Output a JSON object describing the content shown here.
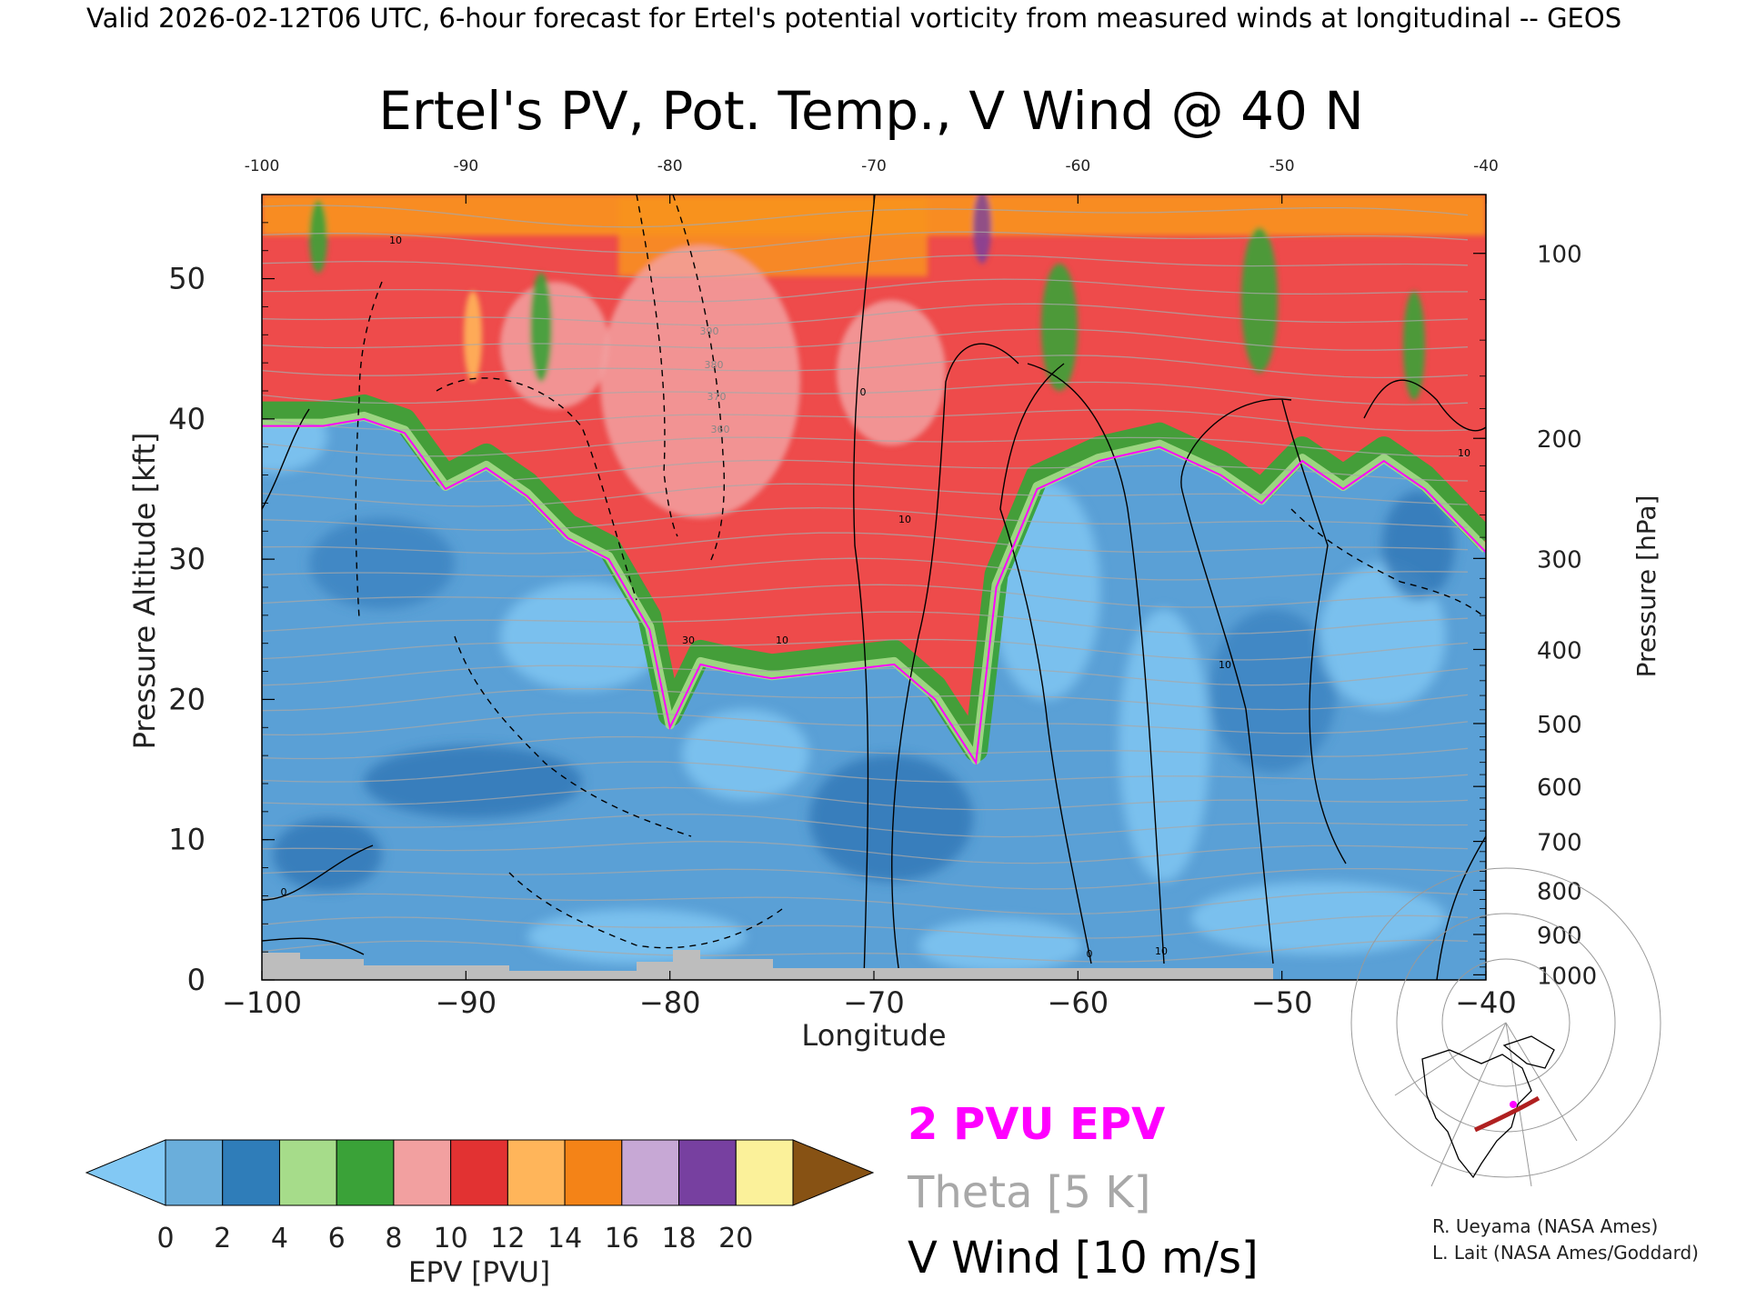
{
  "header": {
    "valid_line": "Valid 2026-02-12T06 UTC, 6-hour forecast for Ertel's potential vorticity from measured winds at longitudinal -- GEOS"
  },
  "chart_data": {
    "type": "heatmap",
    "title": "Ertel's PV, Pot. Temp., V Wind @ 40 N",
    "xlabel": "Longitude",
    "ylabel_left": "Pressure Altitude [kft]",
    "ylabel_right": "Pressure [hPa]",
    "xlim": [
      -100,
      -40
    ],
    "ylim_kft": [
      0,
      56
    ],
    "x_ticks": [
      -100,
      -90,
      -80,
      -70,
      -60,
      -50,
      -40
    ],
    "x_tick_labels_bottom": [
      "−100",
      "−90",
      "−80",
      "−70",
      "−60",
      "−50",
      "−40"
    ],
    "x_tick_labels_top": [
      "-100",
      "-90",
      "-80",
      "-70",
      "-60",
      "-50",
      "-40"
    ],
    "y_ticks_kft": [
      0,
      10,
      20,
      30,
      40,
      50
    ],
    "y_tick_labels_kft": [
      "0",
      "10",
      "20",
      "30",
      "40",
      "50"
    ],
    "pressure_ticks_hpa": [
      1000,
      900,
      800,
      700,
      600,
      500,
      400,
      300,
      200,
      100
    ],
    "pressure_tick_labels": [
      "1000",
      "900",
      "800",
      "700",
      "600",
      "500",
      "400",
      "300",
      "200",
      "100"
    ],
    "tropopause_2pvu_kft": [
      [
        -100,
        39.5
      ],
      [
        -97,
        39.5
      ],
      [
        -95,
        40
      ],
      [
        -93,
        39
      ],
      [
        -91,
        35
      ],
      [
        -89,
        36.5
      ],
      [
        -87,
        34.5
      ],
      [
        -85,
        31.5
      ],
      [
        -83,
        30
      ],
      [
        -81,
        25
      ],
      [
        -80,
        18
      ],
      [
        -78.5,
        22.5
      ],
      [
        -77,
        22
      ],
      [
        -75,
        21.5
      ],
      [
        -72,
        22
      ],
      [
        -69,
        22.5
      ],
      [
        -67,
        20
      ],
      [
        -65,
        15.5
      ],
      [
        -64,
        28
      ],
      [
        -62,
        35
      ],
      [
        -59,
        37
      ],
      [
        -56,
        38
      ],
      [
        -53,
        36
      ],
      [
        -51,
        34
      ],
      [
        -49,
        37
      ],
      [
        -47,
        35
      ],
      [
        -45,
        37
      ],
      [
        -43,
        35
      ],
      [
        -41,
        32
      ],
      [
        -40,
        30.5
      ]
    ],
    "colorbar": {
      "label": "EPV [PVU]",
      "ticks": [
        "0",
        "2",
        "4",
        "6",
        "8",
        "10",
        "12",
        "14",
        "16",
        "18",
        "20"
      ],
      "colors": [
        "#6aaedb",
        "#2f7db9",
        "#a6dc8a",
        "#3aa238",
        "#f2a0a0",
        "#e23232",
        "#ffb55a",
        "#f48317",
        "#c7a8d5",
        "#7740a0",
        "#fbf19a"
      ],
      "under_color": "#82c8f4",
      "over_color": "#875214"
    },
    "legend": [
      {
        "text": "2 PVU EPV",
        "color": "#ff00ff"
      },
      {
        "text": "Theta [5 K]",
        "color": "#a8a8a8"
      },
      {
        "text": "V Wind [10 m/s]",
        "color": "#000000"
      }
    ],
    "inline_labels": [
      "10",
      "0",
      "30",
      "10",
      "10",
      "0",
      "10",
      "10",
      "0",
      "10",
      "390",
      "380",
      "370",
      "360"
    ]
  },
  "credits": {
    "line1": "R. Ueyama (NASA Ames)",
    "line2": "L. Lait (NASA Ames/Goddard)"
  },
  "colors": {
    "magenta": "#ff00ff",
    "theta_gray": "#a8a8a8",
    "ground": "#bdbdbd"
  },
  "inset_map": {
    "icon": "north-america-polar-map-icon"
  }
}
